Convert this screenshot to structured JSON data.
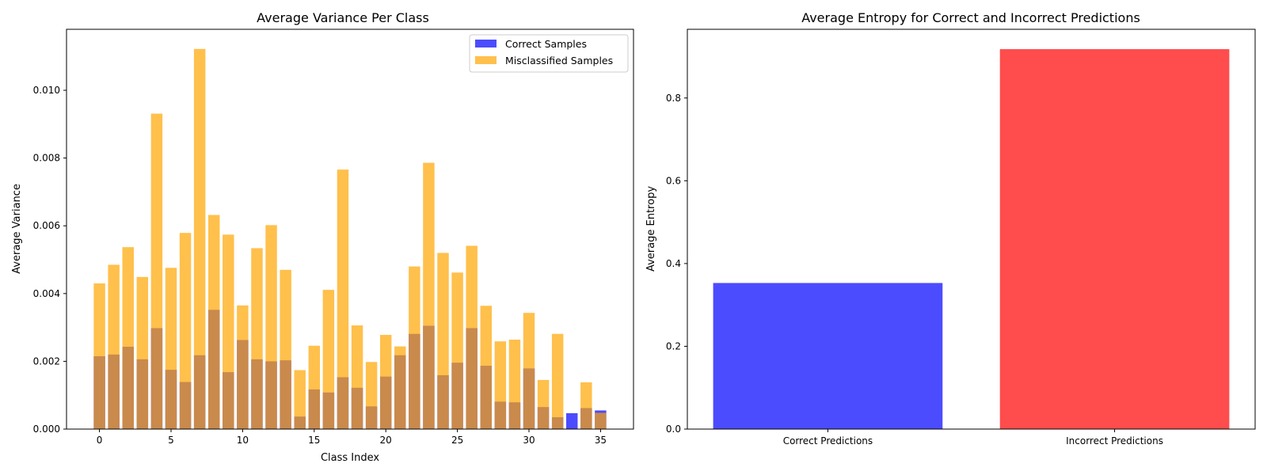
{
  "chart_data": [
    {
      "type": "bar",
      "title": "Average Variance Per Class",
      "xlabel": "Class Index",
      "ylabel": "Average Variance",
      "xlim": [
        -2.3,
        37.3
      ],
      "ylim": [
        0,
        0.0118
      ],
      "xticks": [
        0,
        5,
        10,
        15,
        20,
        25,
        30,
        35
      ],
      "yticks": [
        "0.000",
        "0.002",
        "0.004",
        "0.006",
        "0.008",
        "0.010"
      ],
      "grid": false,
      "legend_position": "top-right",
      "categories": [
        0,
        1,
        2,
        3,
        4,
        5,
        6,
        7,
        8,
        9,
        10,
        11,
        12,
        13,
        14,
        15,
        16,
        17,
        18,
        19,
        20,
        21,
        22,
        23,
        24,
        25,
        26,
        27,
        28,
        29,
        30,
        31,
        32,
        33,
        34,
        35
      ],
      "series": [
        {
          "name": "Correct Samples",
          "color": "#0000ff",
          "values": [
            0.00215,
            0.0022,
            0.00243,
            0.00206,
            0.00298,
            0.00175,
            0.00139,
            0.00218,
            0.00352,
            0.00168,
            0.00263,
            0.00206,
            0.002,
            0.00203,
            0.00037,
            0.00117,
            0.00108,
            0.00153,
            0.00122,
            0.00067,
            0.00155,
            0.00218,
            0.00281,
            0.00305,
            0.00159,
            0.00196,
            0.00298,
            0.00187,
            0.00081,
            0.00079,
            0.00179,
            0.00065,
            0.00035,
            0.00047,
            0.00062,
            0.00055
          ]
        },
        {
          "name": "Misclassified Samples",
          "color": "#ffa500",
          "values": [
            0.0043,
            0.00485,
            0.00537,
            0.00449,
            0.00931,
            0.00476,
            0.00579,
            0.01122,
            0.00632,
            0.00574,
            0.00365,
            0.00534,
            0.00602,
            0.0047,
            0.00174,
            0.00246,
            0.00411,
            0.00766,
            0.00306,
            0.00198,
            0.00278,
            0.00244,
            0.0048,
            0.00786,
            0.0052,
            0.00462,
            0.00541,
            0.00364,
            0.00259,
            0.00264,
            0.00343,
            0.00145,
            0.00281,
            0.0,
            0.00138,
            0.00048
          ]
        }
      ]
    },
    {
      "type": "bar",
      "title": "Average Entropy for Correct and Incorrect Predictions",
      "xlabel": "",
      "ylabel": "Average Entropy",
      "ylim": [
        0,
        0.966
      ],
      "yticks": [
        "0.0",
        "0.2",
        "0.4",
        "0.6",
        "0.8"
      ],
      "grid": false,
      "categories": [
        "Correct Predictions",
        "Incorrect Predictions"
      ],
      "values": [
        0.353,
        0.918
      ],
      "colors": [
        "#0000ff",
        "#ff0000"
      ]
    }
  ]
}
